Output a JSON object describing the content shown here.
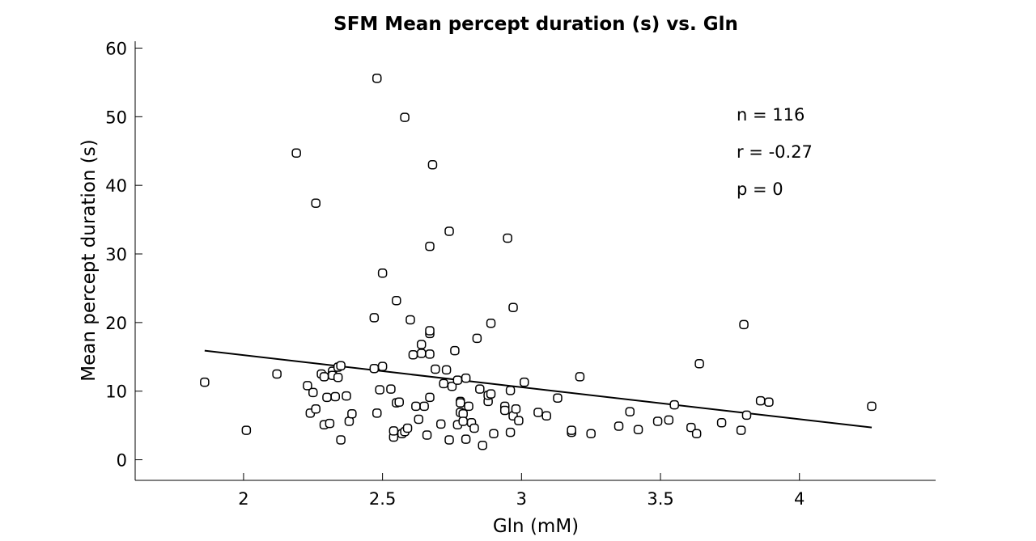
{
  "chart_data": {
    "type": "scatter",
    "title": "SFM Mean percept duration (s) vs. Gln",
    "xlabel": "Gln (mM)",
    "ylabel": "Mean percept duration (s)",
    "xlim": [
      1.61,
      4.49
    ],
    "ylim": [
      -3,
      61
    ],
    "xticks": [
      2,
      2.5,
      3,
      3.5,
      4
    ],
    "xtick_labels": [
      "2",
      "2.5",
      "3",
      "3.5",
      "4"
    ],
    "yticks": [
      0,
      10,
      20,
      30,
      40,
      50,
      60
    ],
    "ytick_labels": [
      "0",
      "10",
      "20",
      "30",
      "40",
      "50",
      "60"
    ],
    "grid": false,
    "annotations": [
      "n = 116",
      "r = -0.27",
      "p = 0"
    ],
    "fit_line": {
      "x": [
        1.86,
        4.26
      ],
      "y": [
        15.9,
        4.7
      ]
    },
    "points": [
      [
        1.86,
        11.3
      ],
      [
        2.01,
        4.3
      ],
      [
        2.12,
        12.5
      ],
      [
        2.19,
        44.7
      ],
      [
        2.23,
        10.8
      ],
      [
        2.24,
        6.8
      ],
      [
        2.25,
        9.8
      ],
      [
        2.26,
        37.4
      ],
      [
        2.26,
        7.4
      ],
      [
        2.28,
        12.5
      ],
      [
        2.29,
        12.1
      ],
      [
        2.29,
        5.1
      ],
      [
        2.3,
        9.1
      ],
      [
        2.31,
        5.3
      ],
      [
        2.32,
        12.9
      ],
      [
        2.32,
        12.3
      ],
      [
        2.33,
        9.2
      ],
      [
        2.34,
        12.0
      ],
      [
        2.34,
        13.5
      ],
      [
        2.35,
        13.7
      ],
      [
        2.35,
        2.9
      ],
      [
        2.37,
        9.3
      ],
      [
        2.38,
        5.6
      ],
      [
        2.39,
        6.7
      ],
      [
        2.47,
        13.3
      ],
      [
        2.47,
        20.7
      ],
      [
        2.48,
        55.6
      ],
      [
        2.48,
        6.8
      ],
      [
        2.49,
        10.2
      ],
      [
        2.5,
        27.2
      ],
      [
        2.5,
        13.6
      ],
      [
        2.53,
        10.3
      ],
      [
        2.54,
        3.3
      ],
      [
        2.54,
        4.2
      ],
      [
        2.55,
        23.2
      ],
      [
        2.55,
        8.3
      ],
      [
        2.56,
        8.4
      ],
      [
        2.57,
        3.8
      ],
      [
        2.58,
        4.1
      ],
      [
        2.58,
        49.9
      ],
      [
        2.59,
        4.6
      ],
      [
        2.6,
        20.4
      ],
      [
        2.61,
        15.3
      ],
      [
        2.62,
        7.8
      ],
      [
        2.63,
        5.9
      ],
      [
        2.64,
        16.8
      ],
      [
        2.64,
        15.5
      ],
      [
        2.65,
        7.8
      ],
      [
        2.66,
        3.6
      ],
      [
        2.67,
        31.1
      ],
      [
        2.67,
        18.4
      ],
      [
        2.67,
        18.8
      ],
      [
        2.67,
        15.4
      ],
      [
        2.67,
        9.1
      ],
      [
        2.68,
        43.0
      ],
      [
        2.69,
        13.2
      ],
      [
        2.71,
        5.2
      ],
      [
        2.72,
        11.1
      ],
      [
        2.73,
        13.1
      ],
      [
        2.74,
        33.3
      ],
      [
        2.74,
        2.9
      ],
      [
        2.75,
        10.7
      ],
      [
        2.76,
        15.9
      ],
      [
        2.77,
        5.1
      ],
      [
        2.77,
        11.6
      ],
      [
        2.78,
        8.5
      ],
      [
        2.78,
        6.9
      ],
      [
        2.78,
        8.3
      ],
      [
        2.79,
        6.7
      ],
      [
        2.79,
        5.6
      ],
      [
        2.8,
        11.9
      ],
      [
        2.8,
        3.0
      ],
      [
        2.81,
        7.8
      ],
      [
        2.82,
        5.4
      ],
      [
        2.83,
        4.6
      ],
      [
        2.84,
        17.7
      ],
      [
        2.85,
        10.3
      ],
      [
        2.86,
        2.1
      ],
      [
        2.88,
        8.5
      ],
      [
        2.88,
        9.4
      ],
      [
        2.89,
        19.9
      ],
      [
        2.89,
        9.6
      ],
      [
        2.9,
        3.8
      ],
      [
        2.94,
        7.8
      ],
      [
        2.94,
        7.2
      ],
      [
        2.95,
        32.3
      ],
      [
        2.96,
        4.0
      ],
      [
        2.96,
        10.1
      ],
      [
        2.97,
        22.2
      ],
      [
        2.97,
        6.4
      ],
      [
        2.98,
        7.4
      ],
      [
        2.99,
        5.7
      ],
      [
        3.01,
        11.3
      ],
      [
        3.06,
        6.9
      ],
      [
        3.09,
        6.4
      ],
      [
        3.13,
        9.0
      ],
      [
        3.18,
        4.0
      ],
      [
        3.18,
        4.3
      ],
      [
        3.21,
        12.1
      ],
      [
        3.25,
        3.8
      ],
      [
        3.35,
        4.9
      ],
      [
        3.39,
        7.0
      ],
      [
        3.42,
        4.4
      ],
      [
        3.49,
        5.6
      ],
      [
        3.53,
        5.8
      ],
      [
        3.55,
        8.0
      ],
      [
        3.61,
        4.7
      ],
      [
        3.63,
        3.8
      ],
      [
        3.64,
        14.0
      ],
      [
        3.72,
        5.4
      ],
      [
        3.79,
        4.3
      ],
      [
        3.8,
        19.7
      ],
      [
        3.81,
        6.5
      ],
      [
        3.86,
        8.6
      ],
      [
        3.89,
        8.4
      ],
      [
        4.26,
        7.8
      ]
    ]
  }
}
